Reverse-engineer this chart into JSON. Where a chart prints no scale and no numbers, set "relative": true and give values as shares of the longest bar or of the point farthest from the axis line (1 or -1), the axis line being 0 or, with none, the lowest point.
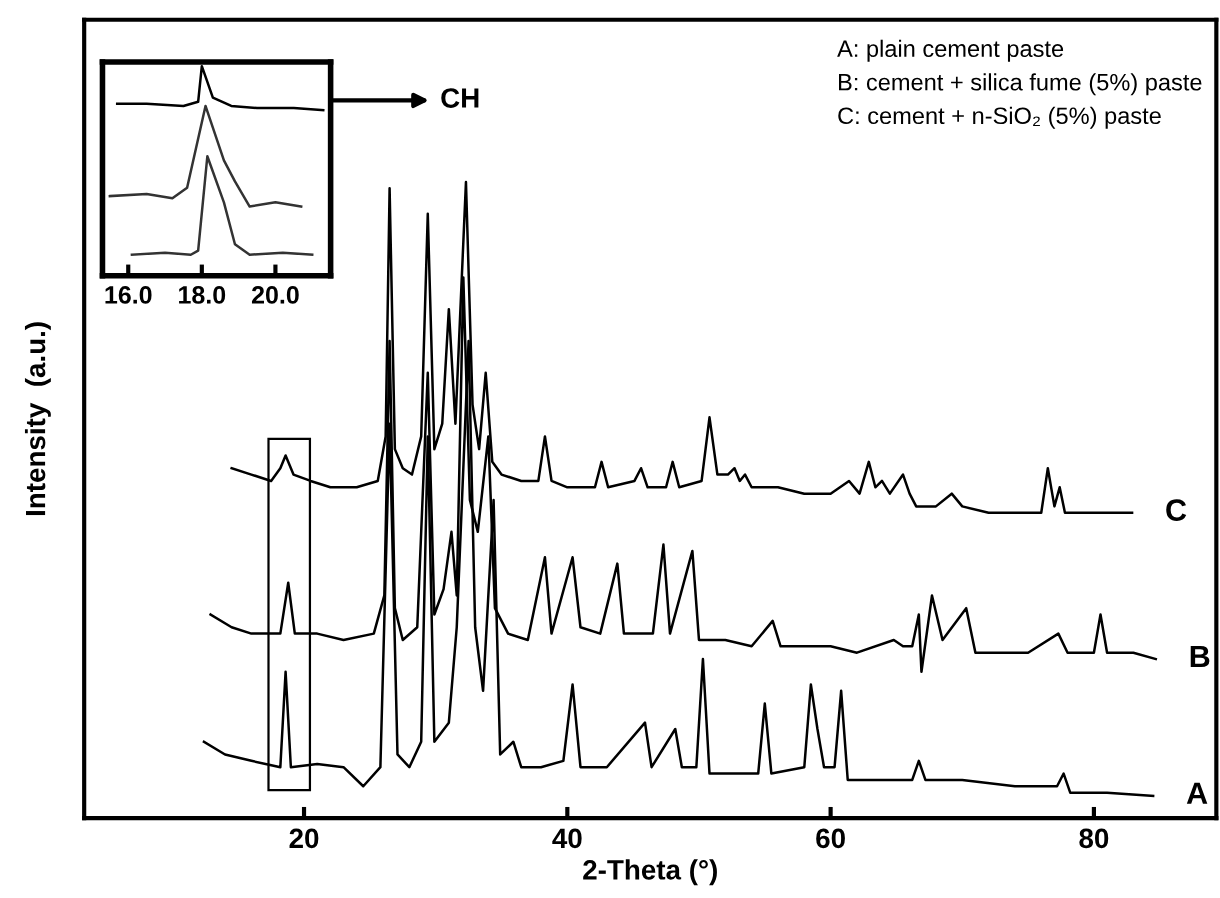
{
  "chart_data": [
    {
      "type": "line",
      "relative": true,
      "xlabel": "2-Theta (°)",
      "ylabel": "Intensity  (a.u.)",
      "xlim": [
        3.3,
        89.3
      ],
      "xticks": [
        20,
        40,
        60,
        80
      ],
      "annotations": [
        "A: plain cement paste",
        "B: cement + silica fume (5%) paste",
        "C: cement + n-SiO₂ (5%) paste"
      ],
      "series": [
        {
          "name": "C",
          "color": "#000000",
          "x": [
            14.5,
            16,
            17.5,
            18.2,
            18.6,
            19.2,
            20.5,
            22,
            24,
            25.6,
            26.2,
            26.5,
            26.9,
            27.5,
            28.2,
            28.9,
            29.4,
            29.9,
            30.5,
            31.0,
            31.5,
            32.3,
            32.8,
            33.3,
            33.8,
            34.3,
            35,
            36.5,
            37.8,
            38.3,
            38.8,
            40,
            42.1,
            42.6,
            43.1,
            45.1,
            45.6,
            46.1,
            47.5,
            48,
            48.5,
            50.2,
            50.8,
            51.4,
            52.2,
            52.7,
            53.1,
            53.5,
            54,
            56,
            58,
            60,
            61.4,
            62.2,
            62.9,
            63.4,
            63.9,
            64.5,
            65.5,
            66,
            66.5,
            68,
            69.2,
            70,
            72,
            74,
            76,
            76.5,
            77,
            77.4,
            77.8,
            80,
            82.9
          ],
          "values": [
            0.55,
            0.54,
            0.53,
            0.55,
            0.57,
            0.54,
            0.53,
            0.52,
            0.52,
            0.53,
            0.6,
            0.99,
            0.58,
            0.55,
            0.54,
            0.6,
            0.95,
            0.58,
            0.62,
            0.8,
            0.62,
            1.0,
            0.65,
            0.58,
            0.7,
            0.56,
            0.54,
            0.53,
            0.53,
            0.6,
            0.53,
            0.52,
            0.52,
            0.56,
            0.52,
            0.53,
            0.55,
            0.52,
            0.52,
            0.56,
            0.52,
            0.53,
            0.63,
            0.54,
            0.54,
            0.55,
            0.53,
            0.54,
            0.52,
            0.52,
            0.51,
            0.51,
            0.53,
            0.51,
            0.56,
            0.52,
            0.53,
            0.51,
            0.54,
            0.51,
            0.49,
            0.49,
            0.51,
            0.49,
            0.48,
            0.48,
            0.48,
            0.55,
            0.49,
            0.52,
            0.48,
            0.48,
            0.48
          ]
        },
        {
          "name": "B",
          "color": "#000000",
          "x": [
            12.9,
            14.5,
            16,
            18.2,
            18.8,
            19.3,
            21,
            23,
            25.3,
            26.1,
            26.5,
            26.9,
            27.5,
            28.6,
            29.4,
            29.9,
            30.6,
            31.2,
            31.6,
            32.1,
            32.6,
            33.2,
            34.0,
            34.5,
            35.5,
            37,
            38.3,
            38.8,
            40.4,
            41,
            42.5,
            43.8,
            44.3,
            46.5,
            47.3,
            47.8,
            49.5,
            50,
            52,
            54,
            55.6,
            56.2,
            58,
            60,
            62,
            64.8,
            65.5,
            66.2,
            66.7,
            66.9,
            67.7,
            68.5,
            70.3,
            71,
            73,
            75,
            77.3,
            78,
            80,
            80.5,
            81,
            83,
            84.7
          ],
          "values": [
            0.32,
            0.3,
            0.29,
            0.29,
            0.37,
            0.29,
            0.29,
            0.28,
            0.29,
            0.35,
            0.75,
            0.33,
            0.28,
            0.3,
            0.7,
            0.32,
            0.36,
            0.45,
            0.35,
            0.85,
            0.5,
            0.45,
            0.6,
            0.33,
            0.29,
            0.28,
            0.41,
            0.29,
            0.41,
            0.3,
            0.29,
            0.4,
            0.29,
            0.29,
            0.43,
            0.29,
            0.42,
            0.28,
            0.28,
            0.27,
            0.31,
            0.27,
            0.27,
            0.27,
            0.26,
            0.28,
            0.27,
            0.27,
            0.32,
            0.23,
            0.35,
            0.28,
            0.33,
            0.26,
            0.26,
            0.26,
            0.29,
            0.26,
            0.26,
            0.32,
            0.26,
            0.26,
            0.25
          ]
        },
        {
          "name": "A",
          "color": "#000000",
          "x": [
            12.4,
            14,
            16,
            18.2,
            18.6,
            19,
            21,
            23,
            24.5,
            25.8,
            26.5,
            27.1,
            28,
            28.9,
            29.4,
            29.9,
            31,
            31.6,
            32.5,
            33,
            33.6,
            34.4,
            34.9,
            35.9,
            36.5,
            38,
            39.7,
            40.4,
            41,
            43,
            45.9,
            46.4,
            48.2,
            48.7,
            49.8,
            50.3,
            50.8,
            54.5,
            55.0,
            55.5,
            58,
            58.5,
            59,
            59.5,
            60.3,
            60.8,
            61.3,
            64,
            66.2,
            66.7,
            67.2,
            70,
            74,
            77.2,
            77.7,
            78.2,
            81,
            84.5
          ],
          "values": [
            0.12,
            0.1,
            0.09,
            0.08,
            0.23,
            0.08,
            0.085,
            0.08,
            0.05,
            0.08,
            0.62,
            0.1,
            0.08,
            0.12,
            0.6,
            0.12,
            0.15,
            0.3,
            0.75,
            0.3,
            0.2,
            0.5,
            0.1,
            0.12,
            0.08,
            0.08,
            0.09,
            0.21,
            0.08,
            0.08,
            0.15,
            0.08,
            0.14,
            0.08,
            0.08,
            0.25,
            0.07,
            0.07,
            0.18,
            0.07,
            0.08,
            0.21,
            0.14,
            0.08,
            0.08,
            0.2,
            0.06,
            0.06,
            0.06,
            0.09,
            0.06,
            0.06,
            0.05,
            0.05,
            0.07,
            0.04,
            0.04,
            0.035
          ]
        }
      ]
    },
    {
      "type": "line",
      "relative": true,
      "xlim": [
        15.3,
        21.5
      ],
      "xticks": [
        {
          "value": 16,
          "label": "16.0"
        },
        {
          "value": 18,
          "label": "18.0"
        },
        {
          "value": 20,
          "label": "20.0"
        }
      ],
      "annotations": [
        "CH"
      ],
      "series": [
        {
          "color": "#000000",
          "x": [
            15.7,
            16.5,
            17.5,
            17.9,
            18.0,
            18.3,
            18.8,
            19.5,
            20.5,
            21.3
          ],
          "values": [
            0.82,
            0.82,
            0.81,
            0.83,
            1.0,
            0.85,
            0.81,
            0.8,
            0.8,
            0.79
          ]
        },
        {
          "color": "#333333",
          "x": [
            15.5,
            16.5,
            17.2,
            17.6,
            18.1,
            18.6,
            18.9,
            19.3,
            20,
            20.7
          ],
          "values": [
            0.38,
            0.39,
            0.37,
            0.42,
            0.81,
            0.55,
            0.45,
            0.33,
            0.35,
            0.33
          ]
        },
        {
          "color": "#333333",
          "x": [
            16.1,
            17,
            17.7,
            17.9,
            18.15,
            18.6,
            18.9,
            19.3,
            20.2,
            21.0
          ],
          "values": [
            0.1,
            0.11,
            0.1,
            0.12,
            0.57,
            0.35,
            0.15,
            0.1,
            0.11,
            0.1
          ]
        }
      ]
    }
  ]
}
